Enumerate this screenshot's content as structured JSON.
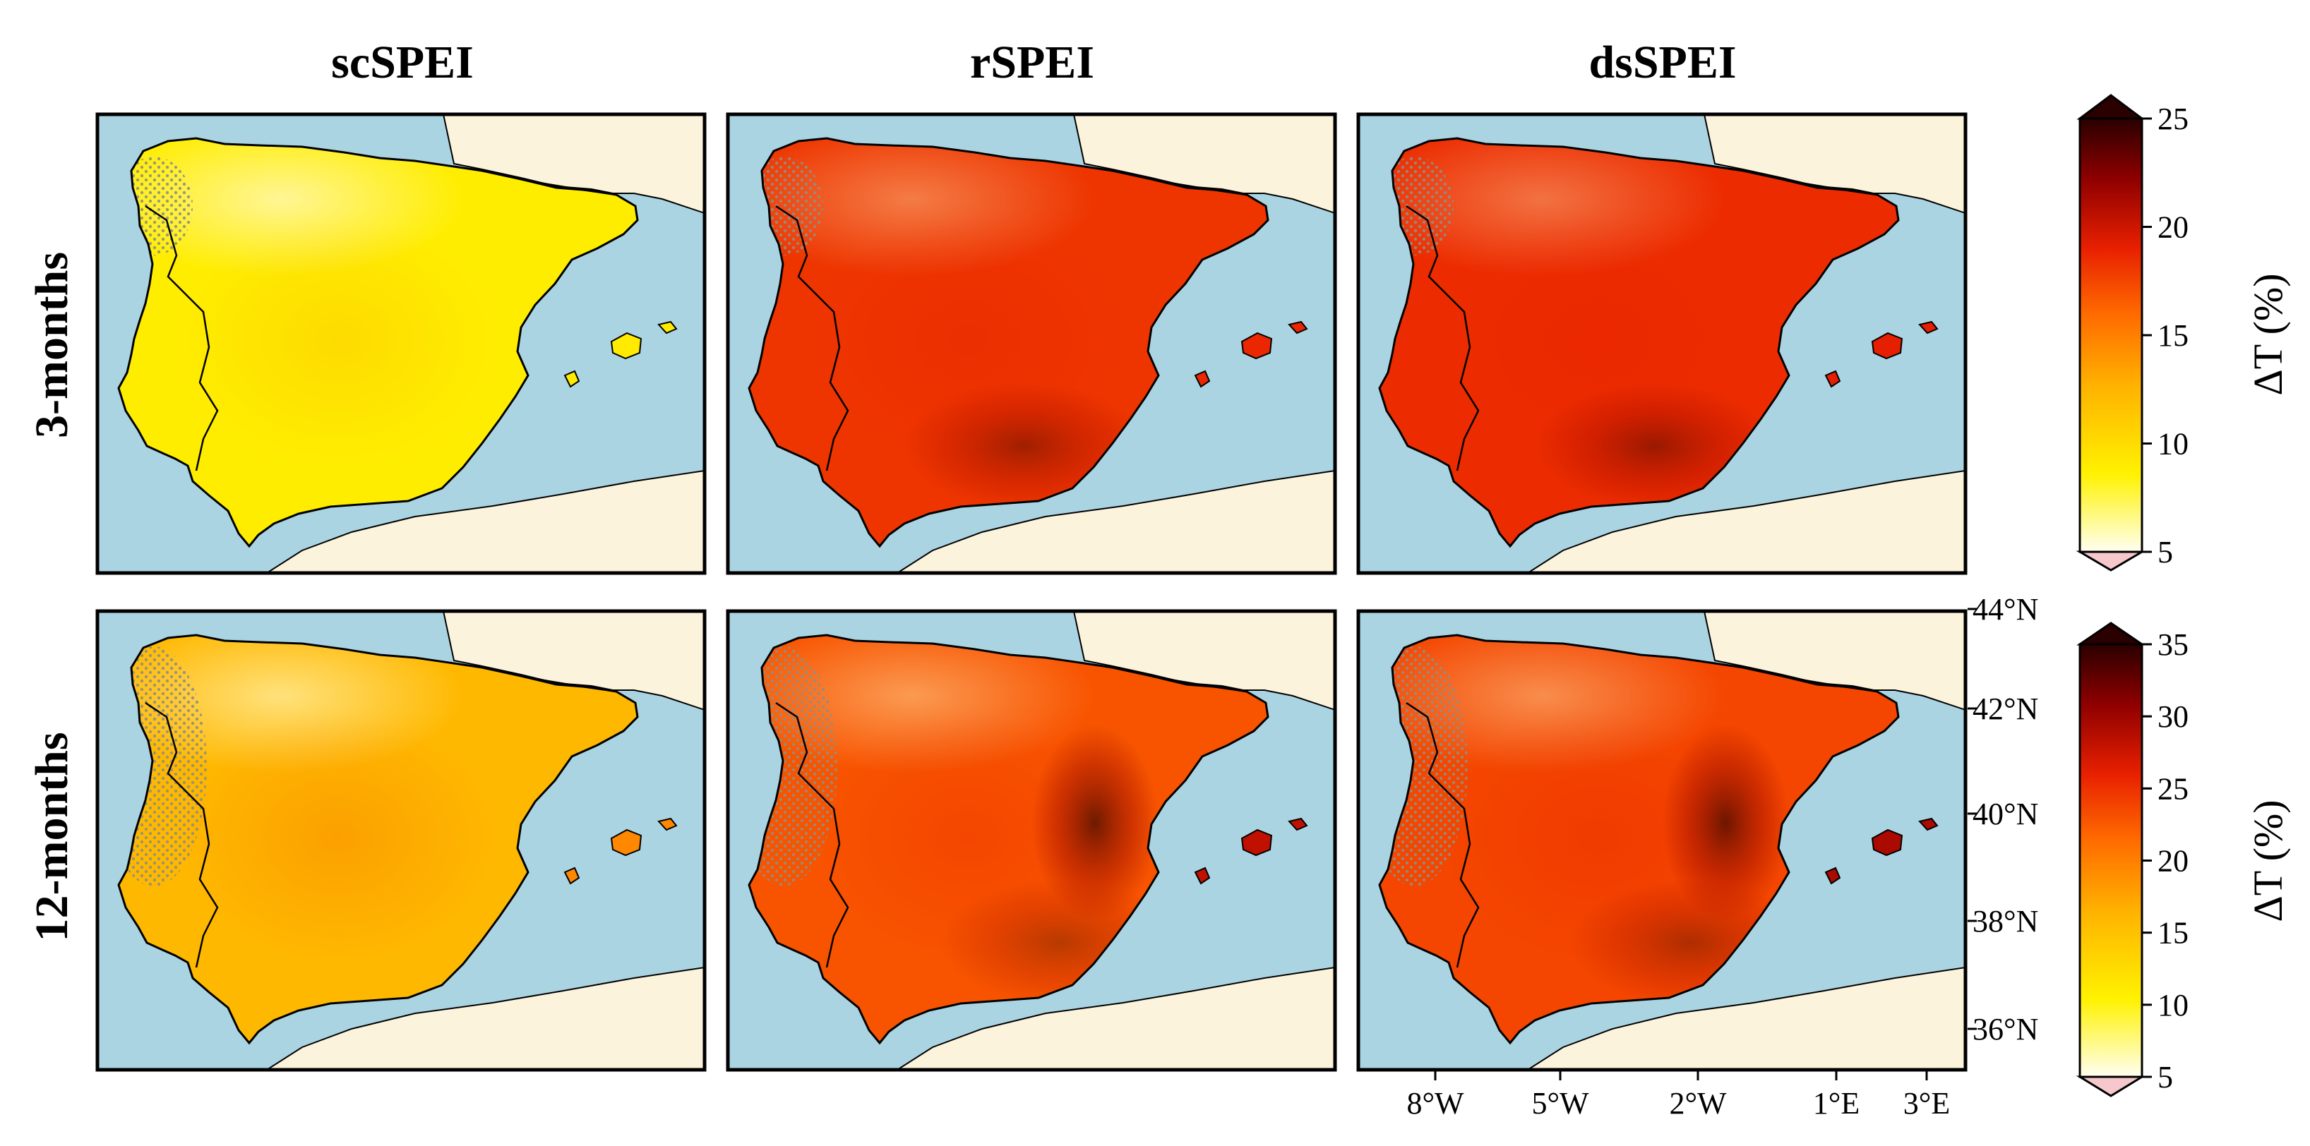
{
  "figure": {
    "columns": [
      "scSPEI",
      "rSPEI",
      "dsSPEI"
    ],
    "rows": [
      "3-months",
      "12-months"
    ],
    "latitude_ticks": [
      "44°N",
      "42°N",
      "40°N",
      "38°N",
      "36°N"
    ],
    "longitude_ticks": [
      "8°W",
      "5°W",
      "2°W",
      "1°E",
      "3°E"
    ],
    "colorbars": [
      {
        "label": "ΔT (%)",
        "ticks": [
          "25",
          "20",
          "15",
          "10",
          "5"
        ],
        "min": 5,
        "max": 25
      },
      {
        "label": "ΔT (%)",
        "ticks": [
          "35",
          "30",
          "25",
          "20",
          "15",
          "10",
          "5"
        ],
        "min": 5,
        "max": 35
      }
    ],
    "colors": {
      "sea": "#abd4e3",
      "land_outside": "#fcf3dc",
      "border": "#000000",
      "hatch": "#8f8f80",
      "colormap": [
        "#fffff2",
        "#fff200",
        "#ffb300",
        "#ff6a00",
        "#e82000",
        "#8f0000",
        "#2a0000"
      ]
    },
    "intensity": [
      {
        "row": "3-months",
        "column": "scSPEI",
        "mean_level": 0.18
      },
      {
        "row": "3-months",
        "column": "rSPEI",
        "mean_level": 0.62
      },
      {
        "row": "3-months",
        "column": "dsSPEI",
        "mean_level": 0.64
      },
      {
        "row": "12-months",
        "column": "scSPEI",
        "mean_level": 0.32
      },
      {
        "row": "12-months",
        "column": "rSPEI",
        "mean_level": 0.55
      },
      {
        "row": "12-months",
        "column": "dsSPEI",
        "mean_level": 0.58
      }
    ]
  }
}
